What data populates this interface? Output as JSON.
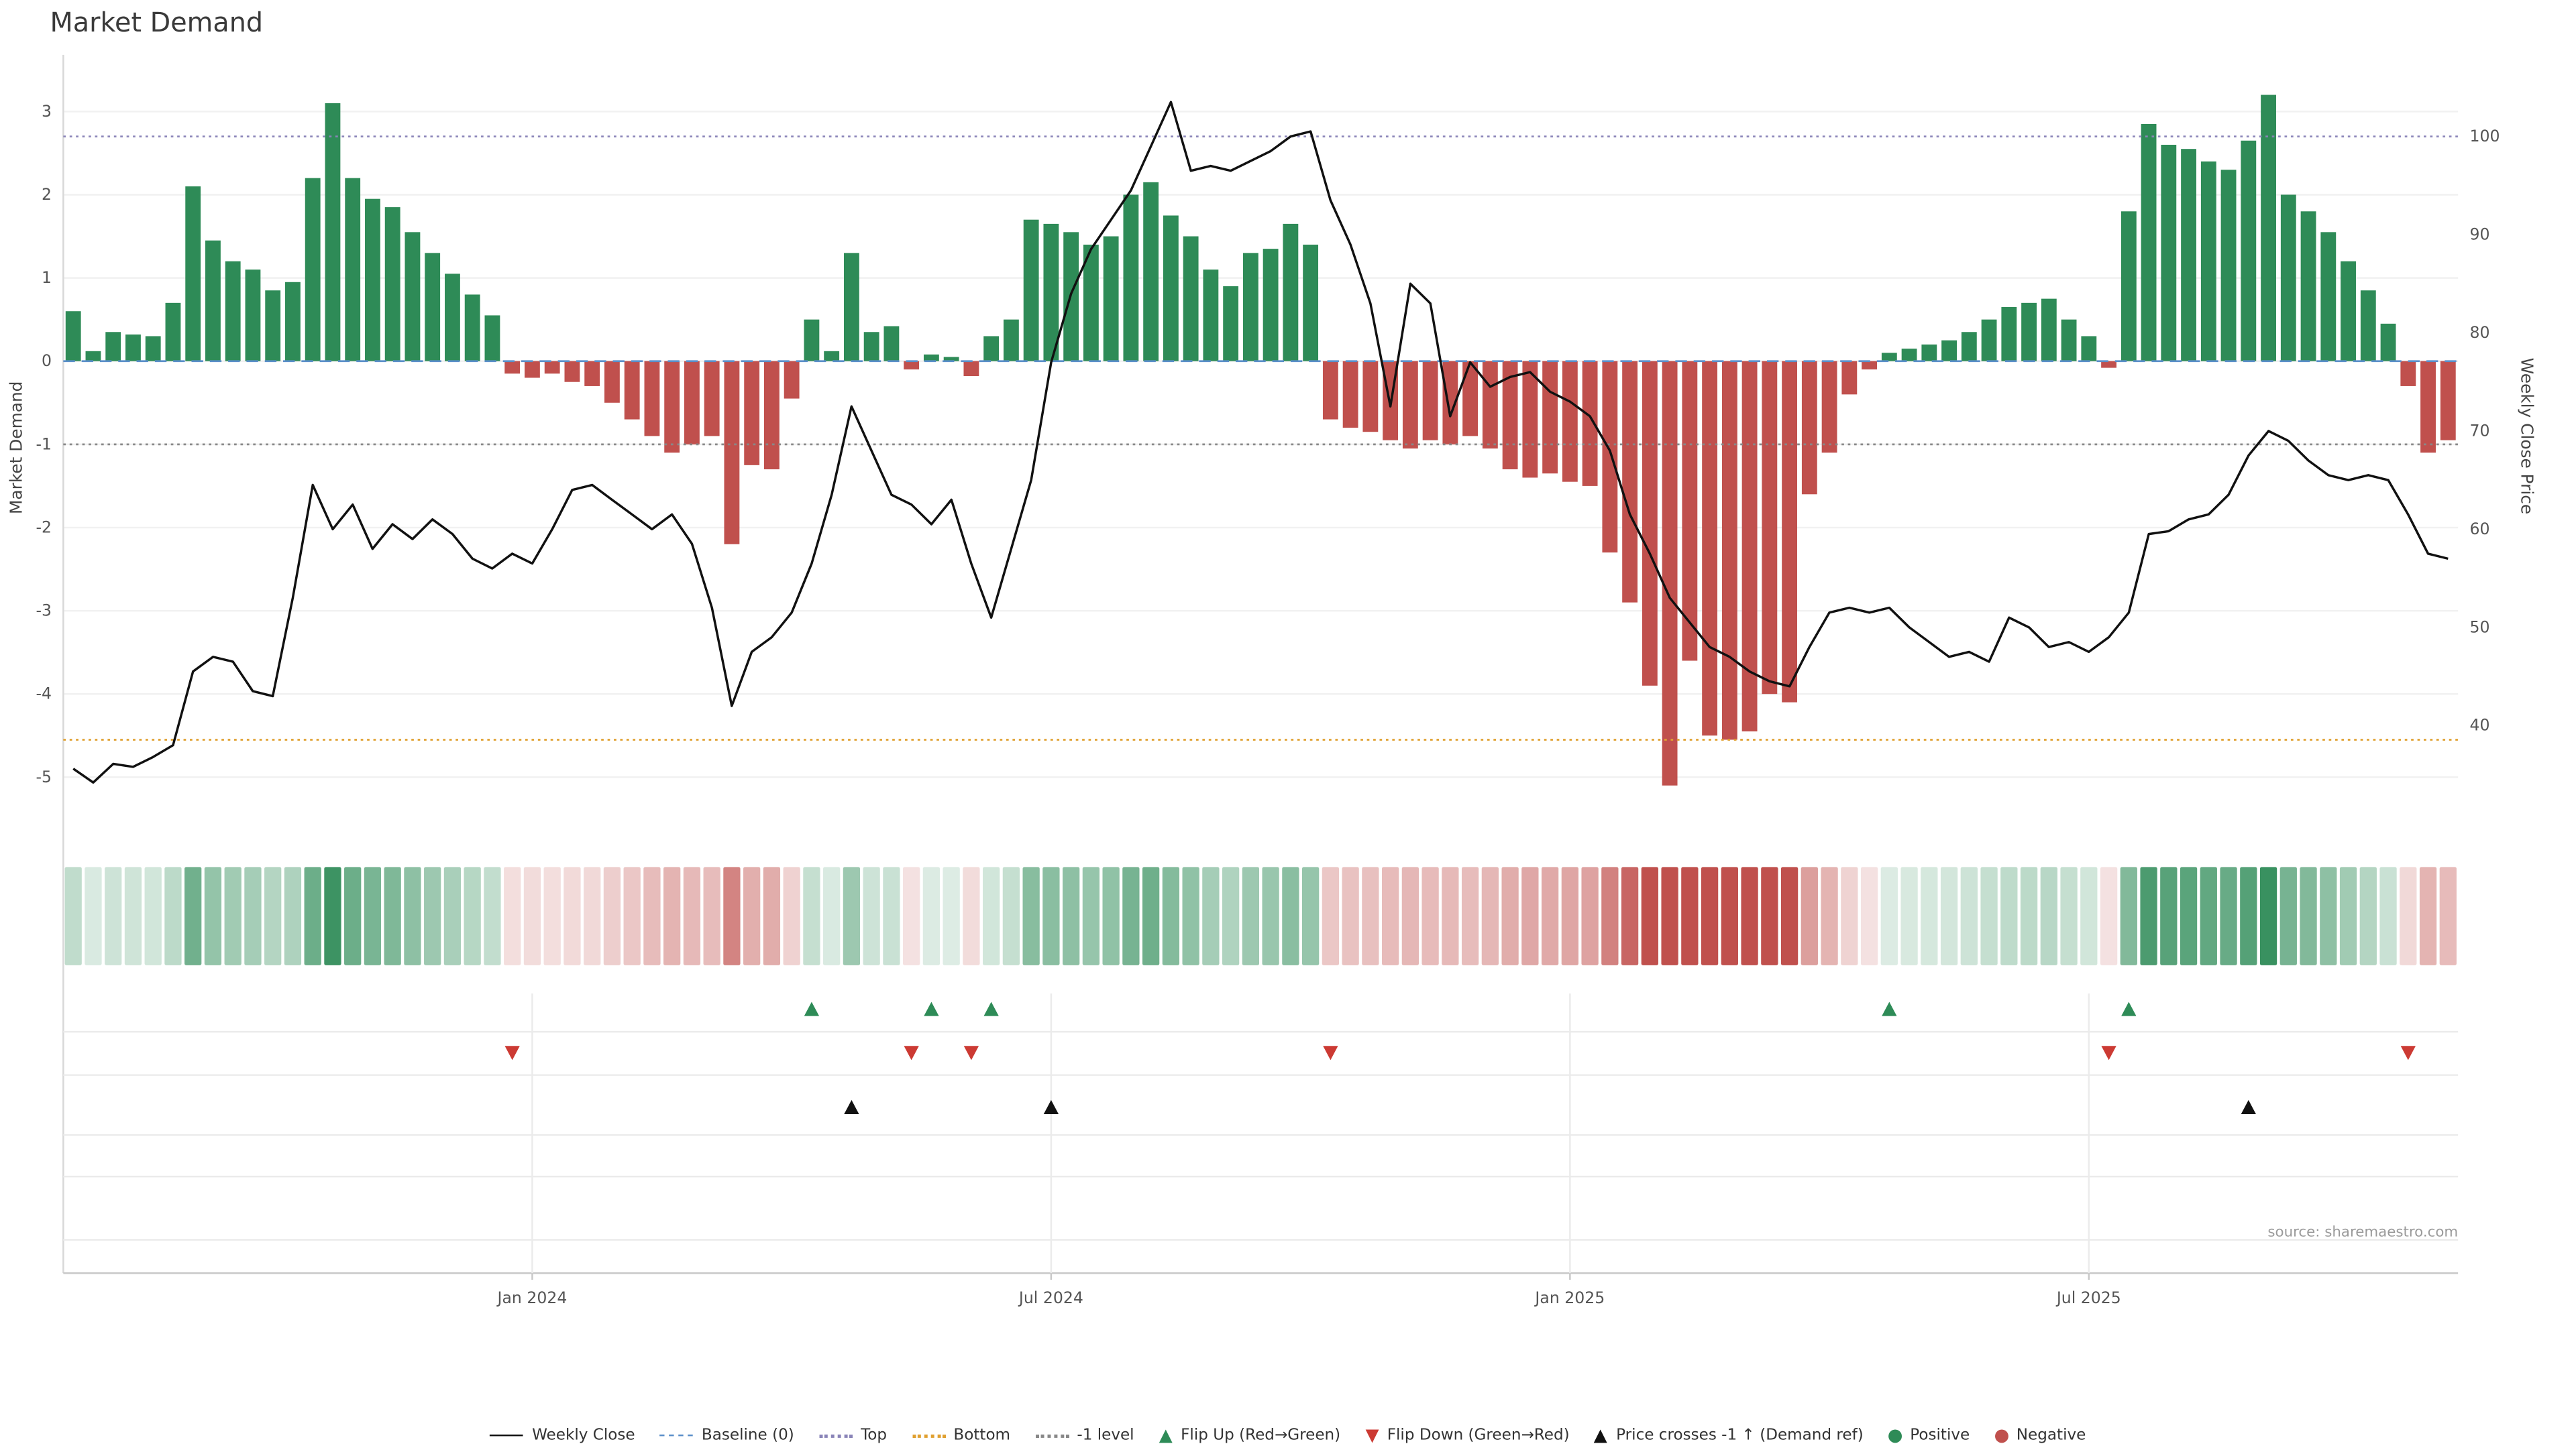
{
  "title": "Market Demand",
  "source": "source: sharemaestro.com",
  "axes": {
    "left_label": "Market Demand",
    "right_label": "Weekly Close Price",
    "left_ticks": [
      3,
      2,
      1,
      0,
      -1,
      -2,
      -3,
      -4,
      -5
    ],
    "right_ticks": [
      100,
      90,
      80,
      70,
      60,
      50,
      40
    ],
    "x_ticks": [
      {
        "label": "Jan 2024",
        "index": 23
      },
      {
        "label": "Jul 2024",
        "index": 49
      },
      {
        "label": "Jan 2025",
        "index": 75
      },
      {
        "label": "Jul 2025",
        "index": 101
      }
    ]
  },
  "chart_data": {
    "type": "bar+line",
    "title": "Market Demand",
    "left_ylabel": "Market Demand",
    "right_ylabel": "Weekly Close Price",
    "left_ylim": [
      -5.76,
      3.68
    ],
    "right_ylim": [
      28.3,
      108.3
    ],
    "grid": "horizontal-light",
    "legend_position": "bottom",
    "heatmap_strip": true,
    "series": [
      {
        "name": "Market Demand",
        "type": "bar",
        "axis": "left",
        "values": [
          0.6,
          0.12,
          0.35,
          0.32,
          0.3,
          0.7,
          2.1,
          1.45,
          1.2,
          1.1,
          0.85,
          0.95,
          2.2,
          3.1,
          2.2,
          1.95,
          1.85,
          1.55,
          1.3,
          1.05,
          0.8,
          0.55,
          -0.15,
          -0.2,
          -0.15,
          -0.25,
          -0.3,
          -0.5,
          -0.7,
          -0.9,
          -1.1,
          -1.0,
          -0.9,
          -2.2,
          -1.25,
          -1.3,
          -0.45,
          0.5,
          0.12,
          1.3,
          0.35,
          0.42,
          -0.1,
          0.08,
          0.05,
          -0.18,
          0.3,
          0.5,
          1.7,
          1.65,
          1.55,
          1.4,
          1.5,
          2.0,
          2.15,
          1.75,
          1.5,
          1.1,
          0.9,
          1.3,
          1.35,
          1.65,
          1.4,
          -0.7,
          -0.8,
          -0.85,
          -0.95,
          -1.05,
          -0.95,
          -1.0,
          -0.9,
          -1.05,
          -1.3,
          -1.4,
          -1.35,
          -1.45,
          -1.5,
          -2.3,
          -2.9,
          -3.9,
          -5.1,
          -3.6,
          -4.5,
          -4.55,
          -4.45,
          -4.0,
          -4.1,
          -1.6,
          -1.1,
          -0.4,
          -0.1,
          0.1,
          0.15,
          0.2,
          0.25,
          0.35,
          0.5,
          0.65,
          0.7,
          0.75,
          0.5,
          0.3,
          -0.08,
          1.8,
          2.85,
          2.6,
          2.55,
          2.4,
          2.3,
          2.65,
          3.2,
          2.0,
          1.8,
          1.55,
          1.2,
          0.85,
          0.45,
          -0.3,
          -1.1,
          -0.95
        ]
      },
      {
        "name": "Weekly Close",
        "type": "line",
        "axis": "right",
        "values": [
          35.6,
          34.2,
          36.1,
          35.8,
          36.8,
          38.0,
          45.5,
          47.0,
          46.5,
          43.5,
          43.0,
          53.0,
          64.5,
          60.0,
          62.5,
          58.0,
          60.5,
          59.0,
          61.0,
          59.5,
          57.0,
          56.0,
          57.5,
          56.5,
          60.0,
          64.0,
          64.5,
          63.0,
          61.5,
          60.0,
          61.5,
          58.5,
          52.0,
          42.0,
          47.5,
          49.0,
          51.5,
          56.5,
          63.5,
          72.5,
          68.0,
          63.5,
          62.5,
          60.5,
          63.0,
          56.5,
          51.0,
          58.0,
          65.0,
          77.0,
          84.0,
          88.5,
          91.5,
          94.5,
          99.0,
          103.5,
          96.5,
          97.0,
          96.5,
          97.5,
          98.5,
          100.0,
          100.5,
          93.5,
          89.0,
          83.0,
          72.5,
          85.0,
          83.0,
          71.5,
          77.0,
          74.5,
          75.5,
          76.0,
          74.0,
          73.0,
          71.5,
          68.0,
          61.5,
          57.5,
          53.0,
          50.5,
          48.0,
          47.0,
          45.5,
          44.5,
          44.0,
          48.0,
          51.5,
          52.0,
          51.5,
          52.0,
          50.0,
          48.5,
          47.0,
          47.5,
          46.5,
          51.0,
          50.0,
          48.0,
          48.5,
          47.5,
          49.0,
          51.5,
          59.5,
          59.8,
          61.0,
          61.5,
          63.5,
          67.5,
          70.0,
          69.0,
          67.0,
          65.5,
          65.0,
          65.5,
          65.0,
          61.5,
          57.5,
          57.0
        ]
      }
    ],
    "reference_lines": [
      {
        "name": "Baseline (0)",
        "axis": "left",
        "value": 0,
        "style": "dashed",
        "color": "#5b8fc9"
      },
      {
        "name": "Top",
        "axis": "left",
        "value": 2.7,
        "style": "dotted",
        "color": "#8a84b8"
      },
      {
        "name": "Bottom",
        "axis": "left",
        "value": -4.55,
        "style": "dotted",
        "color": "#e0a030"
      },
      {
        "name": "-1 level",
        "axis": "left",
        "value": -1,
        "style": "dotted",
        "color": "#888888"
      }
    ],
    "markers": {
      "flip_up": {
        "label": "Flip Up (Red→Green)",
        "color": "#2e8b57",
        "indices": [
          37,
          43,
          46,
          91,
          103
        ]
      },
      "flip_down": {
        "label": "Flip Down (Green→Red)",
        "color": "#cc3a33",
        "indices": [
          22,
          42,
          45,
          63,
          102,
          117
        ]
      },
      "price_cross": {
        "label": "Price crosses -1 ↑ (Demand ref)",
        "color": "#111111",
        "indices": [
          39,
          49,
          109
        ]
      }
    },
    "colors": {
      "positive": "#2e8b57",
      "negative": "#c0504d",
      "line": "#111111"
    }
  },
  "legend": {
    "items": [
      {
        "label": "Weekly Close",
        "swatch": "line",
        "color": "#111111"
      },
      {
        "label": "Baseline (0)",
        "swatch": "dashed-line",
        "color": "#5b8fc9"
      },
      {
        "label": "Top",
        "swatch": "dotted-line",
        "color": "#8a84b8"
      },
      {
        "label": "Bottom",
        "swatch": "dotted-line",
        "color": "#e0a030"
      },
      {
        "label": "-1 level",
        "swatch": "dotted-line",
        "color": "#888888"
      },
      {
        "label": "Flip Up (Red→Green)",
        "swatch": "triangle-up",
        "color": "#2e8b57"
      },
      {
        "label": "Flip Down (Green→Red)",
        "swatch": "triangle-down",
        "color": "#cc3a33"
      },
      {
        "label": "Price crosses -1 ↑ (Demand ref)",
        "swatch": "triangle-up",
        "color": "#111111"
      },
      {
        "label": "Positive",
        "swatch": "dot",
        "color": "#2e8b57"
      },
      {
        "label": "Negative",
        "swatch": "dot",
        "color": "#c0504d"
      }
    ]
  }
}
